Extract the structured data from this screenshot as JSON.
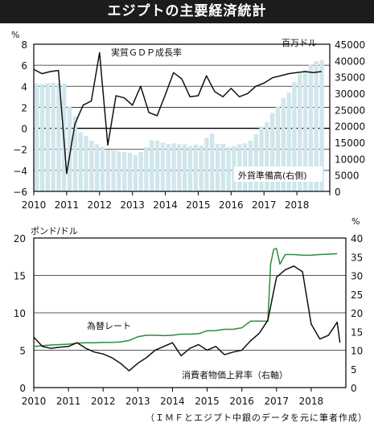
{
  "header": {
    "title": "エジプトの主要経済統計"
  },
  "chart_data": [
    {
      "type": "bar+line",
      "title": "",
      "x_ticks": [
        "2010",
        "2011",
        "2012",
        "2013",
        "2014",
        "2015",
        "2016",
        "2017",
        "2018"
      ],
      "left_axis": {
        "unit_label": "%",
        "ticks": [
          8,
          6,
          4,
          2,
          0,
          -2,
          -4,
          -6
        ],
        "ylim": [
          -6,
          8
        ]
      },
      "right_axis": {
        "unit_label": "百万ドル",
        "ticks": [
          45000,
          40000,
          35000,
          30000,
          25000,
          20000,
          15000,
          10000,
          5000,
          0
        ],
        "ylim": [
          0,
          45000
        ]
      },
      "series": [
        {
          "name": "外貨準備高(右側)",
          "type": "bar",
          "axis": "right",
          "color": "#cfe6ec",
          "x": [
            2010.0,
            2010.167,
            2010.333,
            2010.5,
            2010.667,
            2010.833,
            2011.0,
            2011.167,
            2011.333,
            2011.5,
            2011.667,
            2011.833,
            2012.0,
            2012.167,
            2012.333,
            2012.5,
            2012.667,
            2012.833,
            2013.0,
            2013.167,
            2013.333,
            2013.5,
            2013.667,
            2013.833,
            2014.0,
            2014.167,
            2014.333,
            2014.5,
            2014.667,
            2014.833,
            2015.0,
            2015.167,
            2015.333,
            2015.5,
            2015.667,
            2015.833,
            2016.0,
            2016.167,
            2016.333,
            2016.5,
            2016.667,
            2016.833,
            2017.0,
            2017.167,
            2017.333,
            2017.5,
            2017.667,
            2017.833,
            2018.0,
            2018.167,
            2018.333,
            2018.5,
            2018.667
          ],
          "values": [
            33000,
            32800,
            33100,
            33300,
            33100,
            33000,
            26000,
            23000,
            18000,
            17000,
            15500,
            14400,
            13600,
            12700,
            12500,
            12200,
            12100,
            11800,
            11100,
            12100,
            13500,
            15600,
            15500,
            14900,
            14500,
            14700,
            14400,
            14400,
            13900,
            14300,
            14000,
            16400,
            17700,
            14500,
            14500,
            13500,
            13800,
            14400,
            14700,
            15500,
            17500,
            19800,
            21200,
            24000,
            26000,
            28600,
            30200,
            33500,
            36000,
            37000,
            38700,
            39800,
            40200
          ]
        },
        {
          "name": "実質GDP成長率",
          "type": "line",
          "axis": "left",
          "color": "#111111",
          "x": [
            2010.0,
            2010.25,
            2010.5,
            2010.75,
            2011.0,
            2011.25,
            2011.5,
            2011.75,
            2012.0,
            2012.25,
            2012.5,
            2012.75,
            2013.0,
            2013.25,
            2013.5,
            2013.75,
            2014.0,
            2014.25,
            2014.5,
            2014.75,
            2015.0,
            2015.25,
            2015.5,
            2015.75,
            2016.0,
            2016.25,
            2016.5,
            2016.75,
            2017.0,
            2017.25,
            2017.5,
            2017.75,
            2018.0,
            2018.25,
            2018.5,
            2018.75
          ],
          "values": [
            5.6,
            5.2,
            5.4,
            5.5,
            -4.3,
            0.4,
            2.2,
            2.6,
            7.2,
            -1.6,
            3.1,
            2.9,
            2.2,
            4.0,
            1.5,
            1.2,
            3.2,
            5.3,
            4.7,
            3.0,
            3.1,
            5.0,
            3.5,
            3.0,
            3.8,
            3.0,
            3.3,
            4.0,
            4.3,
            4.8,
            5.0,
            5.2,
            5.3,
            5.4,
            5.3,
            5.4
          ]
        }
      ]
    },
    {
      "type": "line",
      "title": "",
      "x_ticks": [
        "2010",
        "2011",
        "2012",
        "2013",
        "2014",
        "2015",
        "2016",
        "2017",
        "2018"
      ],
      "left_axis": {
        "unit_label": "ポンド/ドル",
        "ticks": [
          20,
          15,
          10,
          5,
          0
        ],
        "ylim": [
          0,
          20
        ]
      },
      "right_axis": {
        "unit_label": "%",
        "ticks": [
          40,
          35,
          30,
          25,
          20,
          15,
          10,
          5,
          0
        ],
        "ylim": [
          0,
          40
        ]
      },
      "series": [
        {
          "name": "為替レート",
          "axis": "left",
          "color": "#2e8b3e",
          "x": [
            2010.0,
            2010.25,
            2010.5,
            2010.75,
            2011.0,
            2011.25,
            2011.5,
            2011.75,
            2012.0,
            2012.25,
            2012.5,
            2012.75,
            2013.0,
            2013.25,
            2013.5,
            2013.75,
            2014.0,
            2014.25,
            2014.5,
            2014.75,
            2015.0,
            2015.25,
            2015.5,
            2015.75,
            2016.0,
            2016.25,
            2016.5,
            2016.75,
            2016.83,
            2016.92,
            2017.0,
            2017.1,
            2017.25,
            2017.5,
            2017.75,
            2018.0,
            2018.25,
            2018.5,
            2018.75
          ],
          "values": [
            5.5,
            5.6,
            5.7,
            5.75,
            5.8,
            5.95,
            6.0,
            6.0,
            6.05,
            6.05,
            6.1,
            6.3,
            6.8,
            7.0,
            7.0,
            6.95,
            7.0,
            7.15,
            7.15,
            7.2,
            7.6,
            7.62,
            7.8,
            7.8,
            8.0,
            8.88,
            8.88,
            8.88,
            16.5,
            18.5,
            18.6,
            16.5,
            17.8,
            17.8,
            17.7,
            17.7,
            17.8,
            17.85,
            17.9
          ]
        },
        {
          "name": "消費者物価上昇率(右軸)",
          "axis": "right",
          "color": "#111111",
          "x": [
            2010.0,
            2010.25,
            2010.5,
            2010.75,
            2011.0,
            2011.25,
            2011.5,
            2011.75,
            2012.0,
            2012.25,
            2012.5,
            2012.75,
            2013.0,
            2013.25,
            2013.5,
            2013.75,
            2014.0,
            2014.25,
            2014.5,
            2014.75,
            2015.0,
            2015.25,
            2015.5,
            2015.75,
            2016.0,
            2016.25,
            2016.5,
            2016.75,
            2017.0,
            2017.25,
            2017.5,
            2017.75,
            2018.0,
            2018.25,
            2018.5,
            2018.75,
            2018.83
          ],
          "values": [
            13.5,
            11.0,
            10.5,
            10.8,
            11.0,
            12.0,
            10.5,
            9.5,
            9.0,
            8.0,
            6.5,
            4.5,
            6.5,
            8.0,
            10.0,
            11.0,
            12.0,
            8.5,
            10.5,
            11.5,
            10.0,
            11.0,
            8.8,
            9.5,
            10.0,
            12.5,
            14.5,
            18.0,
            29.5,
            31.5,
            32.5,
            31.0,
            17.0,
            13.0,
            14.0,
            17.5,
            12.0
          ]
        }
      ],
      "annotations": [
        "為替レート",
        "消費者物価上昇率(右軸)"
      ]
    }
  ],
  "labels": {
    "top_unit_left": "%",
    "top_unit_right": "百万ドル",
    "gdp_label": "実質ＧＤＰ成長率",
    "reserves_label": "外貨準備高(右側)",
    "bottom_unit_left": "ポンド/ドル",
    "bottom_unit_right": "%",
    "fx_label": "為替レート",
    "cpi_label": "消費者物価上昇率（右軸）"
  },
  "footer": {
    "source": "（ＩＭＦとエジプト中銀のデータを元に筆者作成）"
  }
}
